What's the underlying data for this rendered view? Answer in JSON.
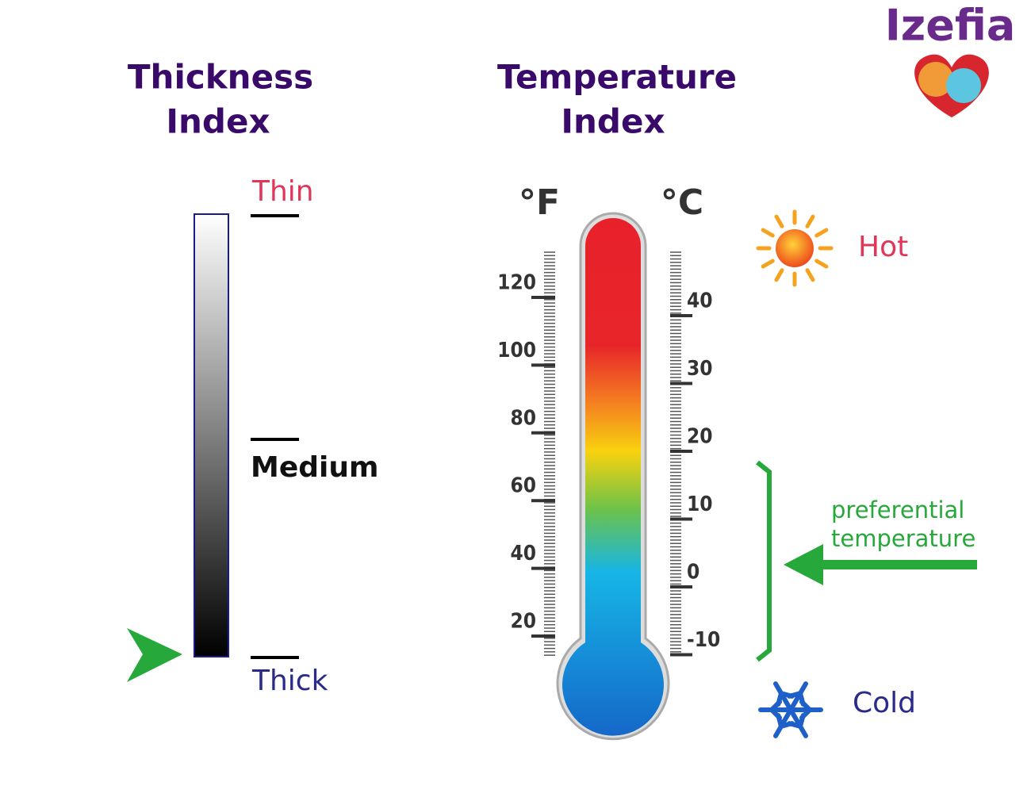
{
  "logo": "Izefia",
  "thickness": {
    "title": [
      "Thickness",
      "Index"
    ],
    "levels": [
      "Thin",
      "Medium",
      "Thick"
    ]
  },
  "temperature": {
    "title": [
      "Temperature",
      "Index"
    ],
    "fahrenheit": {
      "unit": "°F",
      "ticks": [
        120,
        100,
        80,
        60,
        40,
        20
      ]
    },
    "celsius": {
      "unit": "°C",
      "ticks": [
        40,
        30,
        20,
        10,
        0,
        -10
      ]
    },
    "hot": "Hot",
    "cold": "Cold",
    "preferential": [
      "preferential",
      "temperature"
    ]
  }
}
